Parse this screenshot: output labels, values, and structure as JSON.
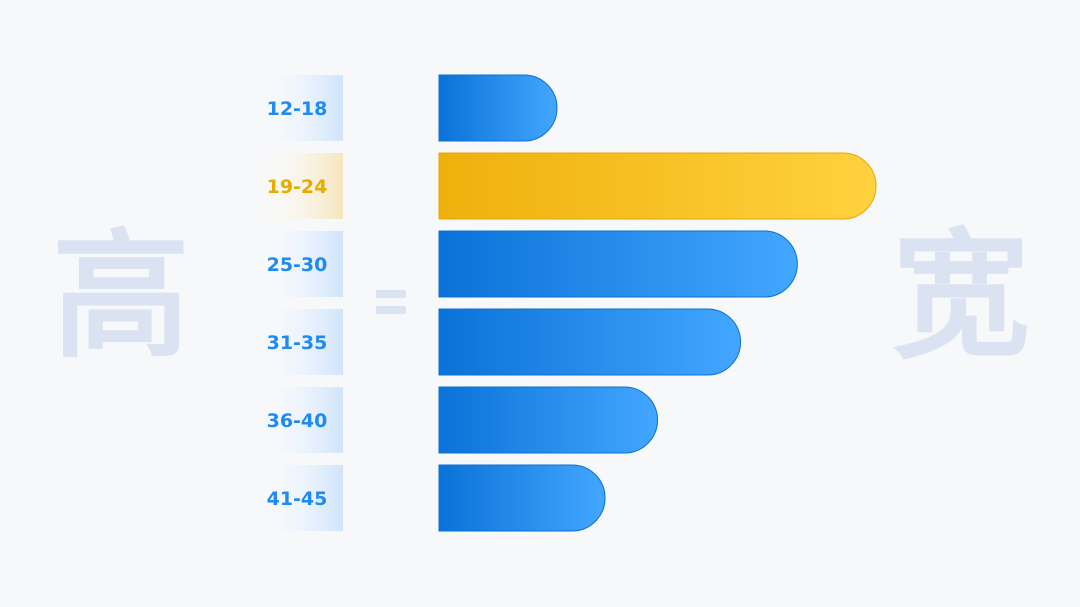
{
  "left_char": "高",
  "right_char": "宽",
  "equals_symbol": "=",
  "colors": {
    "blue_start": "#0a72d8",
    "blue_end": "#43a7ff",
    "blue_label": "#1f8bf0",
    "gold_start": "#efb00c",
    "gold_end": "#ffd23e",
    "gold_label": "#e8ac00",
    "highlight_index": 1
  },
  "chart_data": {
    "type": "bar",
    "orientation": "horizontal",
    "categories": [
      "12-18",
      "19-24",
      "25-30",
      "31-35",
      "36-40",
      "41-45"
    ],
    "values": [
      27,
      100,
      82,
      69,
      50,
      38
    ],
    "xlim": [
      0,
      100
    ],
    "highlight_category": "19-24",
    "grid": false,
    "legend": "none"
  }
}
